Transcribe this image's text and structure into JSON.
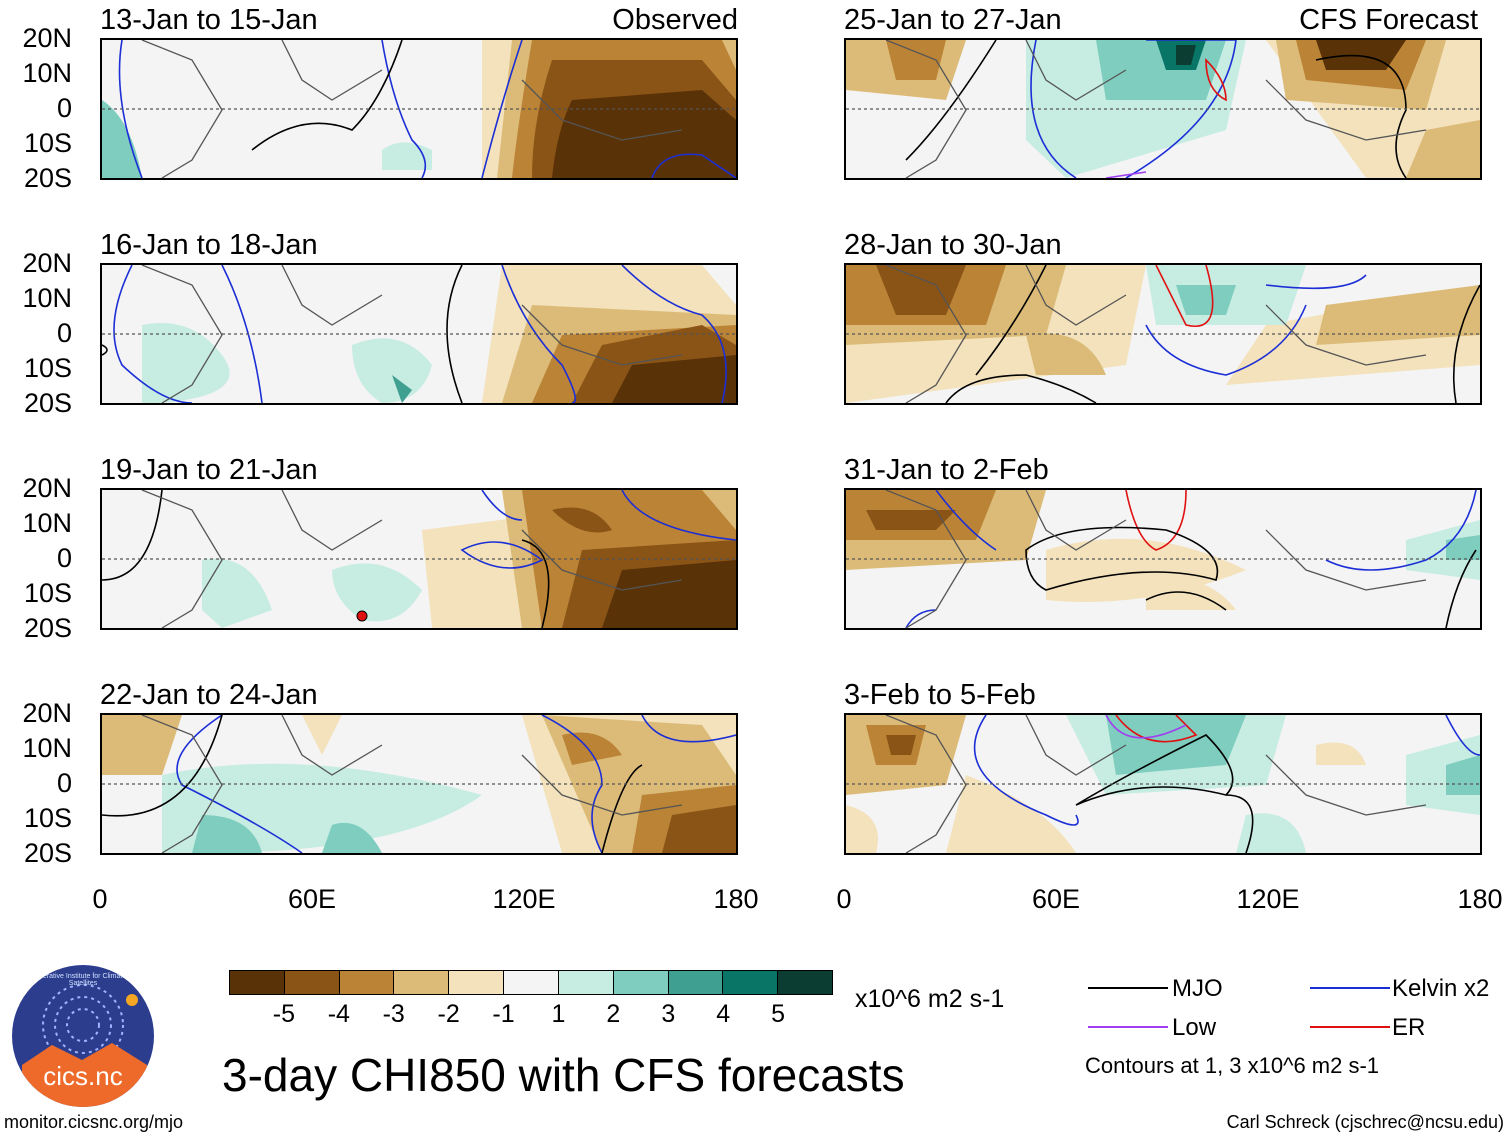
{
  "panels": {
    "left": [
      {
        "title": "13-Jan to 15-Jan",
        "right_label": "Observed"
      },
      {
        "title": "16-Jan to 18-Jan",
        "right_label": ""
      },
      {
        "title": "19-Jan to 21-Jan",
        "right_label": ""
      },
      {
        "title": "22-Jan to 24-Jan",
        "right_label": ""
      }
    ],
    "right": [
      {
        "title": "25-Jan to 27-Jan",
        "right_label": "CFS Forecast"
      },
      {
        "title": "28-Jan to 30-Jan",
        "right_label": ""
      },
      {
        "title": "31-Jan to 2-Feb",
        "right_label": ""
      },
      {
        "title": "3-Feb to 5-Feb",
        "right_label": ""
      }
    ]
  },
  "lat_labels": [
    "20N",
    "10N",
    "0",
    "10S",
    "20S"
  ],
  "lon_labels": [
    "0",
    "60E",
    "120E",
    "180"
  ],
  "colorbar": {
    "colors": [
      "#5a3208",
      "#8a5417",
      "#bb8336",
      "#dcbb78",
      "#f3e2bc",
      "#f4f4f4",
      "#c7ece2",
      "#7fcdbf",
      "#3f9f91",
      "#087566",
      "#0b3d33"
    ],
    "ticks": [
      "-5",
      "-4",
      "-3",
      "-2",
      "-1",
      "1",
      "2",
      "3",
      "4",
      "5"
    ],
    "units": "x10^6 m2 s-1"
  },
  "legend": {
    "mjo": {
      "label": "MJO",
      "color": "#000000"
    },
    "kelvin": {
      "label": "Kelvin x2",
      "color": "#1c2fd6"
    },
    "low": {
      "label": "Low",
      "color": "#a13ef0"
    },
    "er": {
      "label": "ER",
      "color": "#e01010"
    },
    "note": "Contours at 1, 3 x10^6 m2 s-1"
  },
  "title": "3-day CHI850 with CFS forecasts",
  "logo_text": "cics.nc",
  "logo_ring": "Cooperative Institute for Climate and Satellites",
  "footer": {
    "left": "monitor.cicsnc.org/mjo",
    "right": "Carl Schreck (cjschrec@ncsu.edu)"
  }
}
